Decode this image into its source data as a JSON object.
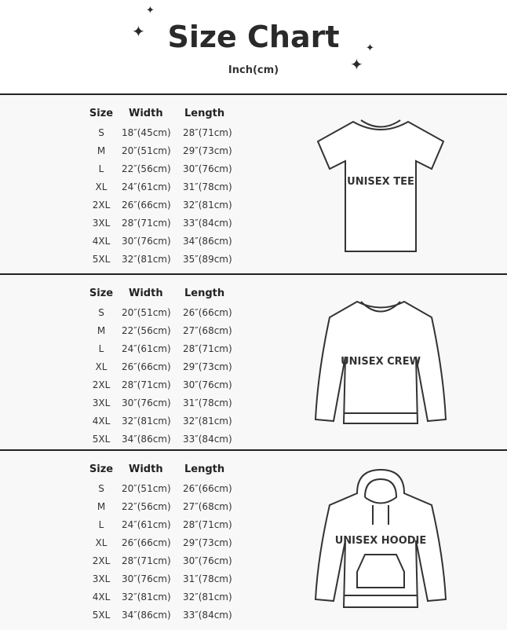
{
  "header": {
    "title": "Size Chart",
    "subtitle": "Inch(cm)",
    "icon": "sparkle-icon"
  },
  "columns": [
    "Size",
    "Width",
    "Length"
  ],
  "sections": [
    {
      "garment": "UNISEX TEE",
      "rows": [
        [
          "S",
          "18″(45cm)",
          "28″(71cm)"
        ],
        [
          "M",
          "20″(51cm)",
          "29″(73cm)"
        ],
        [
          "L",
          "22″(56cm)",
          "30″(76cm)"
        ],
        [
          "XL",
          "24″(61cm)",
          "31″(78cm)"
        ],
        [
          "2XL",
          "26″(66cm)",
          "32″(81cm)"
        ],
        [
          "3XL",
          "28″(71cm)",
          "33″(84cm)"
        ],
        [
          "4XL",
          "30″(76cm)",
          "34″(86cm)"
        ],
        [
          "5XL",
          "32″(81cm)",
          "35″(89cm)"
        ]
      ]
    },
    {
      "garment": "UNISEX CREW",
      "rows": [
        [
          "S",
          "20″(51cm)",
          "26″(66cm)"
        ],
        [
          "M",
          "22″(56cm)",
          "27″(68cm)"
        ],
        [
          "L",
          "24″(61cm)",
          "28″(71cm)"
        ],
        [
          "XL",
          "26″(66cm)",
          "29″(73cm)"
        ],
        [
          "2XL",
          "28″(71cm)",
          "30″(76cm)"
        ],
        [
          "3XL",
          "30″(76cm)",
          "31″(78cm)"
        ],
        [
          "4XL",
          "32″(81cm)",
          "32″(81cm)"
        ],
        [
          "5XL",
          "34″(86cm)",
          "33″(84cm)"
        ]
      ]
    },
    {
      "garment": "UNISEX HOODIE",
      "rows": [
        [
          "S",
          "20″(51cm)",
          "26″(66cm)"
        ],
        [
          "M",
          "22″(56cm)",
          "27″(68cm)"
        ],
        [
          "L",
          "24″(61cm)",
          "28″(71cm)"
        ],
        [
          "XL",
          "26″(66cm)",
          "29″(73cm)"
        ],
        [
          "2XL",
          "28″(71cm)",
          "30″(76cm)"
        ],
        [
          "3XL",
          "30″(76cm)",
          "31″(78cm)"
        ],
        [
          "4XL",
          "32″(81cm)",
          "32″(81cm)"
        ],
        [
          "5XL",
          "34″(86cm)",
          "33″(84cm)"
        ]
      ]
    }
  ]
}
